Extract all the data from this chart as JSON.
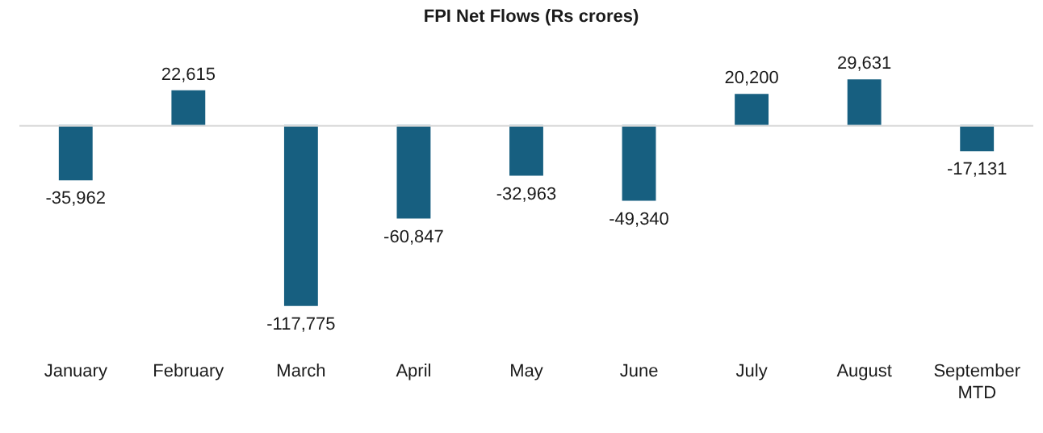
{
  "chart_data": {
    "type": "bar",
    "title": "FPI Net Flows (Rs crores)",
    "categories": [
      "January",
      "February",
      "March",
      "April",
      "May",
      "June",
      "July",
      "August",
      "September MTD"
    ],
    "values": [
      -35962,
      22615,
      -117775,
      -60847,
      -32963,
      -49340,
      20200,
      29631,
      -17131
    ],
    "value_labels": [
      "-35,962",
      "22,615",
      "-117,775",
      "-60,847",
      "-32,963",
      "-49,340",
      "20,200",
      "29,631",
      "-17,131"
    ],
    "color": "#175f80",
    "grid": false,
    "legend": false
  }
}
